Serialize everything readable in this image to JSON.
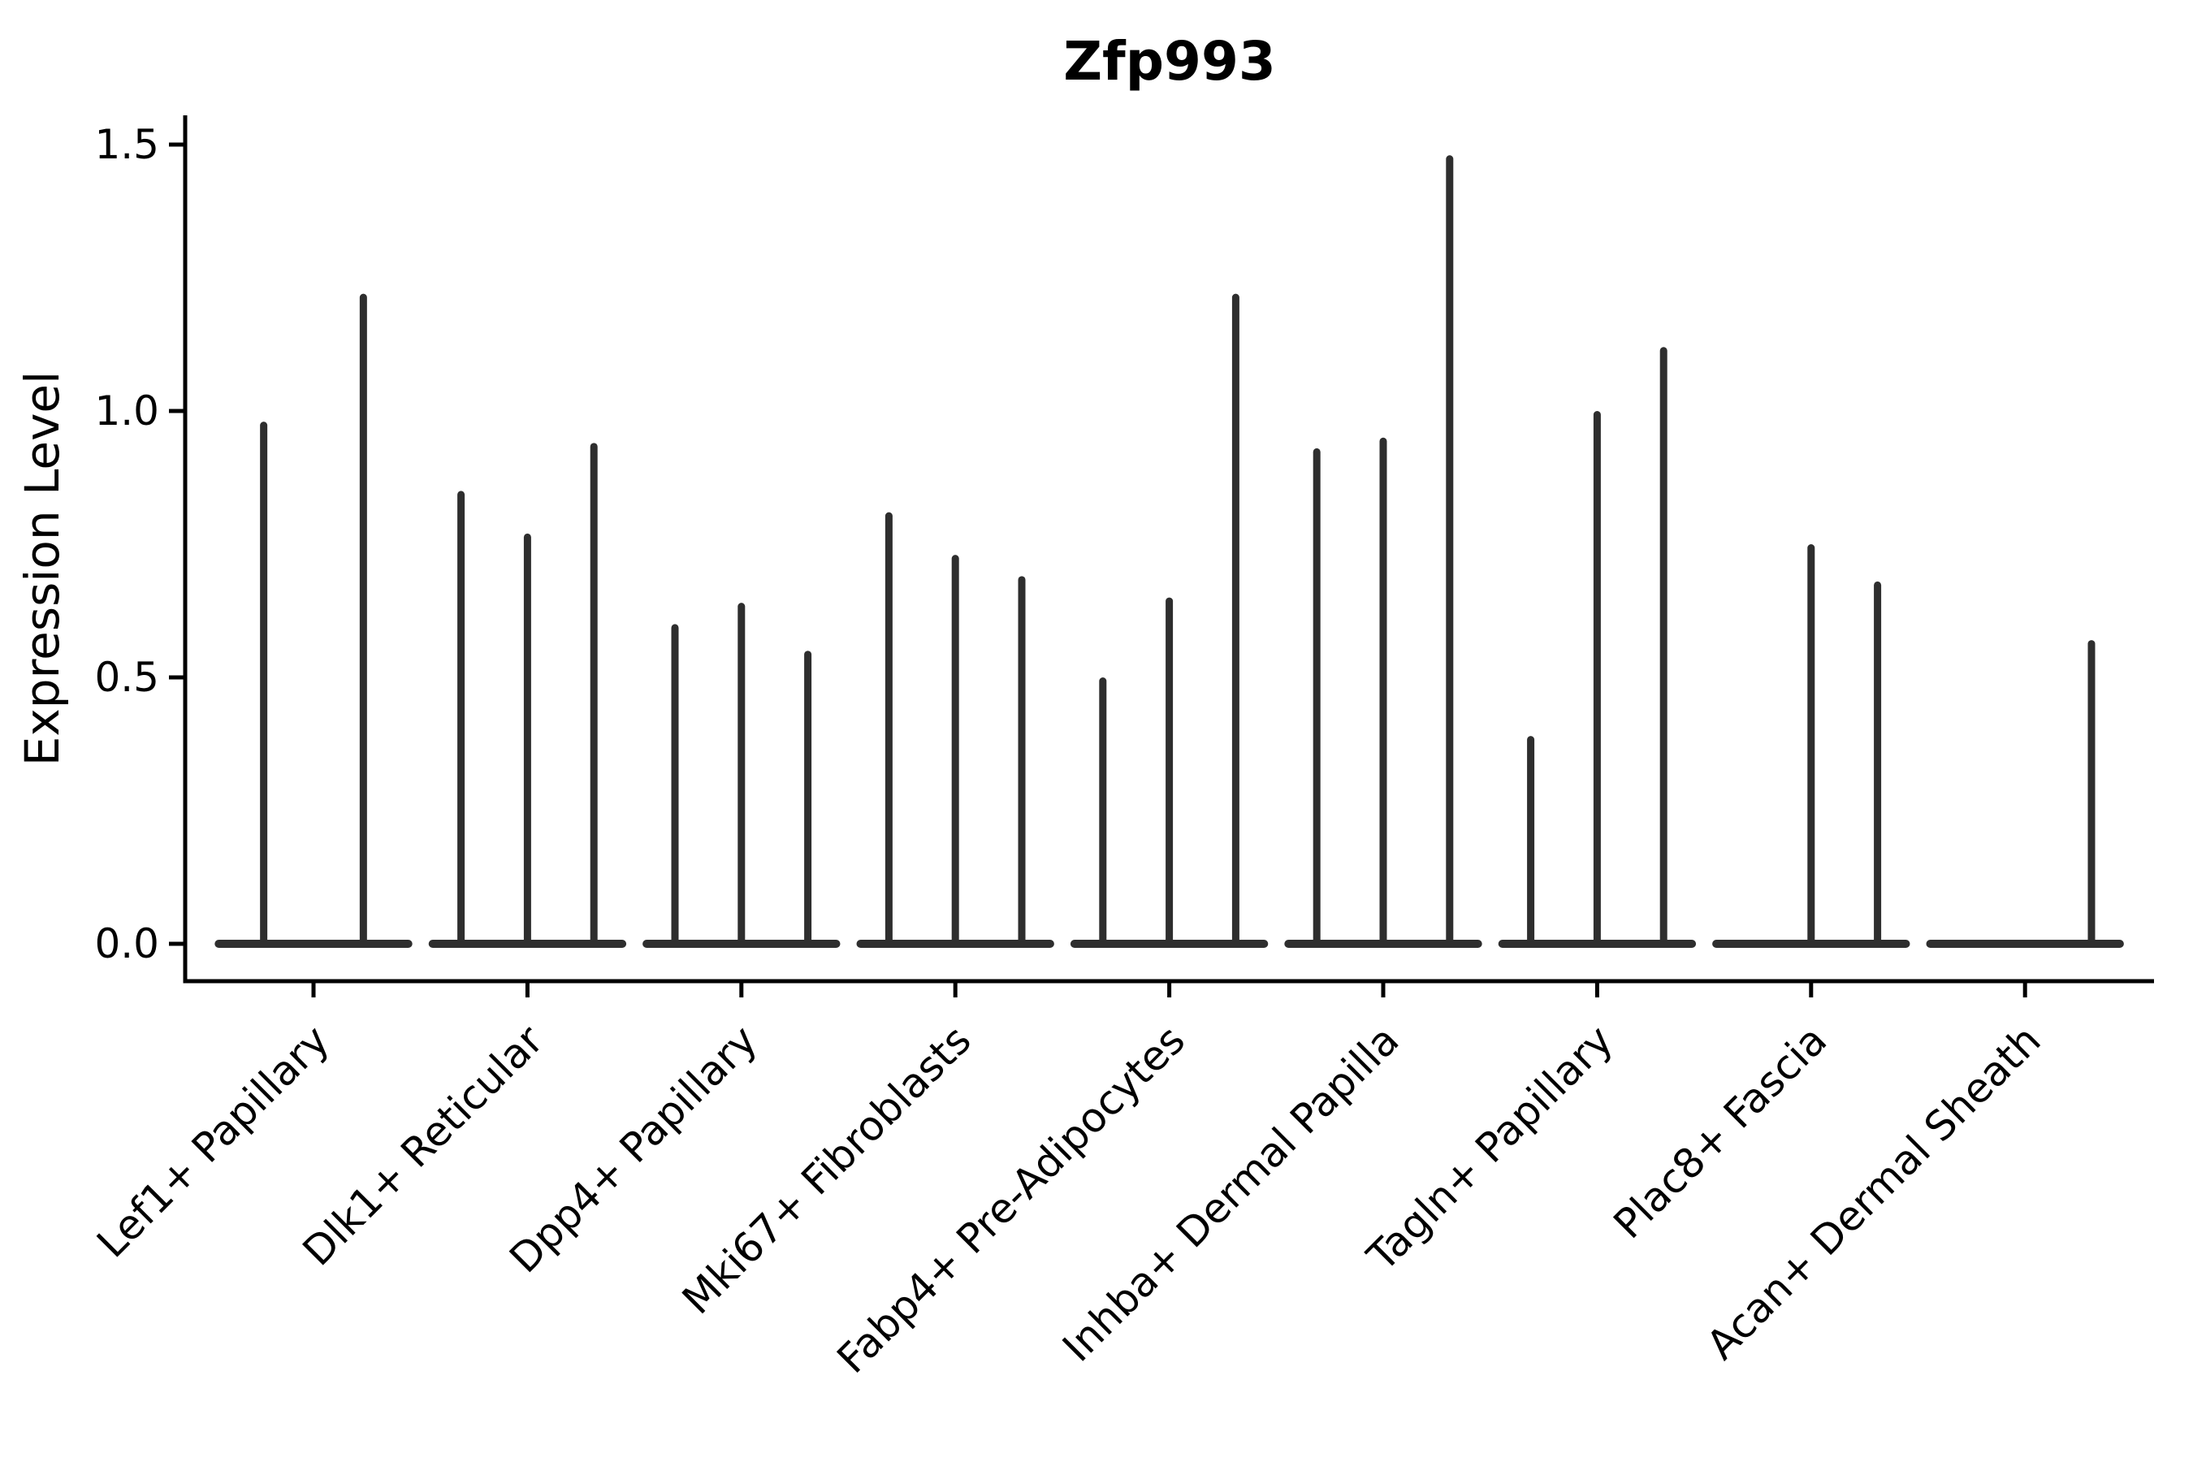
{
  "figure": {
    "title": "Zfp993",
    "y_axis": {
      "label": "Expression Level",
      "tick_labels": [
        "0.0",
        "0.5",
        "1.0",
        "1.5"
      ],
      "tick_values": [
        0.0,
        0.5,
        1.0,
        1.5
      ]
    }
  },
  "chart_data": {
    "type": "violin",
    "title": "Zfp993",
    "xlabel": "",
    "ylabel": "Expression Level",
    "ylim": [
      0,
      1.555
    ],
    "yticks": [
      0.0,
      0.5,
      1.0,
      1.5
    ],
    "grid": false,
    "legend_position": "none",
    "violin_color": "#2e2e2e",
    "axis_color": "#000000",
    "background_color": "#ffffff",
    "description": "Needle-style violin plot: each category holds narrow sub-violins whose density mass sits at 0 with a thin spike up to the max expression value; spike_tops lists the top (max expression) of each sub-violin, 0 = flat violin with no expressing cells",
    "categories": [
      "Lef1+ Papillary",
      "Dlk1+ Reticular",
      "Dpp4+ Papillary",
      "Mki67+ Fibroblasts",
      "Fabp4+ Pre-Adipocytes",
      "Inhba+ Dermal Papilla",
      "Tagln+ Papillary",
      "Plac8+ Fascia",
      "Acan+ Dermal Sheath"
    ],
    "groups": [
      {
        "category": "Lef1+ Papillary",
        "violin_spike_tops": [
          0.98,
          1.22
        ]
      },
      {
        "category": "Dlk1+ Reticular",
        "violin_spike_tops": [
          0.85,
          0.77,
          0.94
        ]
      },
      {
        "category": "Dpp4+ Papillary",
        "violin_spike_tops": [
          0.6,
          0.64,
          0.55
        ]
      },
      {
        "category": "Mki67+ Fibroblasts",
        "violin_spike_tops": [
          0.81,
          0.73,
          0.69
        ]
      },
      {
        "category": "Fabp4+ Pre-Adipocytes",
        "violin_spike_tops": [
          0.5,
          0.65,
          1.22
        ]
      },
      {
        "category": "Inhba+ Dermal Papilla",
        "violin_spike_tops": [
          0.93,
          0.95,
          1.48
        ]
      },
      {
        "category": "Tagln+ Papillary",
        "violin_spike_tops": [
          0.39,
          1.0,
          1.12
        ]
      },
      {
        "category": "Plac8+ Fascia",
        "violin_spike_tops": [
          0,
          0.75,
          0.68
        ]
      },
      {
        "category": "Acan+ Dermal Sheath",
        "violin_spike_tops": [
          0,
          0,
          0.57
        ]
      }
    ]
  }
}
